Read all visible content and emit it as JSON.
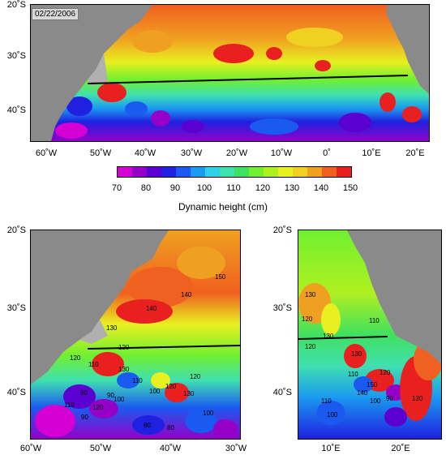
{
  "top_map": {
    "date": "02/22/2006",
    "lat_ticks": [
      "20˚S",
      "30˚S",
      "40˚S"
    ],
    "lon_ticks": [
      "60˚W",
      "50˚W",
      "40˚W",
      "30˚W",
      "20˚W",
      "10˚W",
      "0˚",
      "10˚E",
      "20˚E"
    ]
  },
  "colorbar": {
    "ticks": [
      "70",
      "80",
      "90",
      "100",
      "110",
      "120",
      "130",
      "140",
      "150"
    ],
    "label": "Dynamic height (cm)",
    "colors": [
      "#d400d4",
      "#9400c8",
      "#5a00d0",
      "#2020e0",
      "#1a5af0",
      "#1a9af0",
      "#30d0e8",
      "#40e0b0",
      "#40e060",
      "#70f030",
      "#b0f020",
      "#e8f020",
      "#f0d020",
      "#f0a020",
      "#f06020",
      "#e82020"
    ]
  },
  "bottom_left_map": {
    "lat_ticks": [
      "20˚S",
      "30˚S",
      "40˚S"
    ],
    "lon_ticks": [
      "60˚W",
      "50˚W",
      "40˚W",
      "30˚W"
    ],
    "contour_labels": [
      "150",
      "140",
      "140",
      "130",
      "120",
      "120",
      "110",
      "110",
      "120",
      "130",
      "90",
      "120",
      "130",
      "100",
      "90",
      "110",
      "100",
      "120",
      "80",
      "100",
      "80",
      "90"
    ]
  },
  "bottom_right_map": {
    "lat_ticks": [
      "20˚S",
      "30˚S",
      "40˚S"
    ],
    "lon_ticks": [
      "10˚E",
      "20˚E"
    ],
    "contour_labels": [
      "130",
      "120",
      "120",
      "110",
      "130",
      "110",
      "130",
      "120",
      "150",
      "140",
      "90",
      "100",
      "110",
      "100",
      "120"
    ]
  }
}
